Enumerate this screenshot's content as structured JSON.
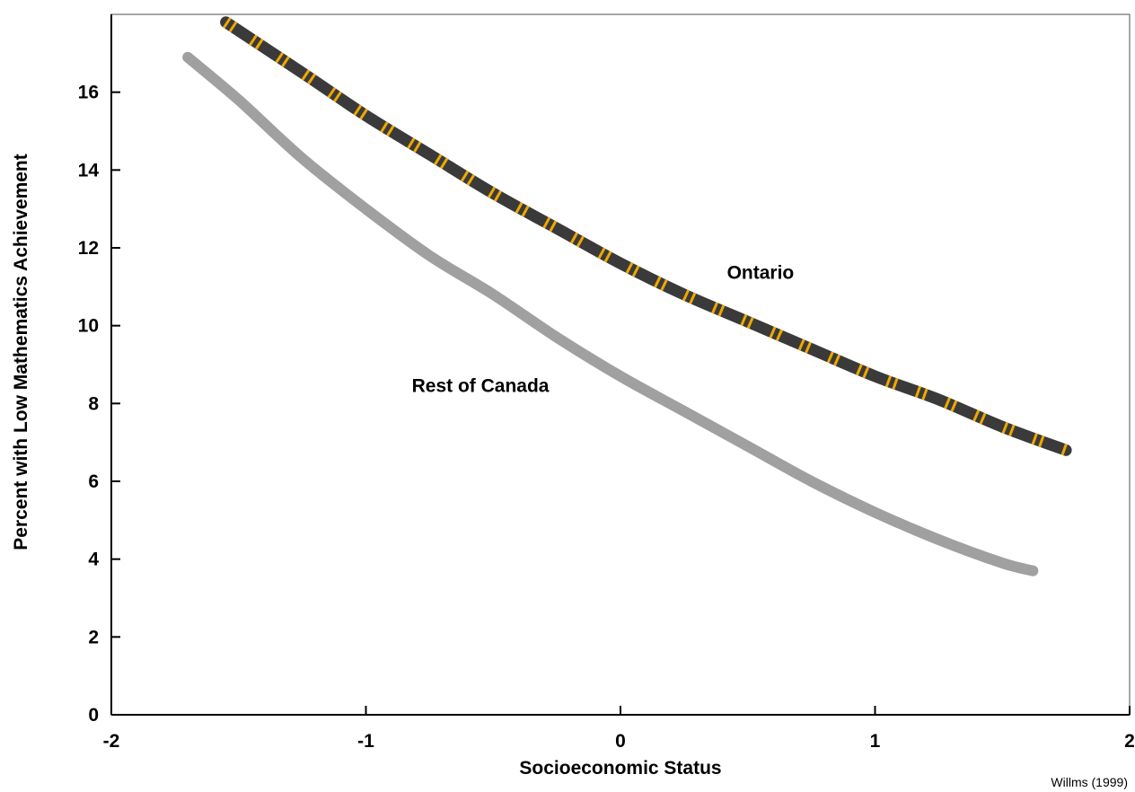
{
  "chart_data": {
    "type": "line",
    "title": "",
    "xlabel": "Socioeconomic Status",
    "ylabel": "Percent with Low Mathematics Achievement",
    "xlim": [
      -2,
      2
    ],
    "ylim": [
      0,
      18
    ],
    "xticks": [
      -2,
      -1,
      0,
      1,
      2
    ],
    "xtick_labels": [
      "-2",
      "-1",
      "0",
      "1",
      "2"
    ],
    "yticks": [
      0,
      2,
      4,
      6,
      8,
      10,
      12,
      14,
      16
    ],
    "ytick_labels": [
      "0",
      "2",
      "4",
      "6",
      "8",
      "10",
      "12",
      "14",
      "16"
    ],
    "grid": false,
    "series": [
      {
        "name": "Ontario",
        "color": "#3a3a3a",
        "dash_color": "#f0a800",
        "x": [
          -1.55,
          -1.25,
          -1.0,
          -0.75,
          -0.5,
          -0.25,
          0.0,
          0.25,
          0.5,
          0.75,
          1.0,
          1.25,
          1.5,
          1.75
        ],
        "y": [
          17.8,
          16.5,
          15.4,
          14.4,
          13.4,
          12.5,
          11.6,
          10.8,
          10.1,
          9.4,
          8.7,
          8.1,
          7.4,
          6.8
        ]
      },
      {
        "name": "Rest of Canada",
        "color": "#a0a0a0",
        "x": [
          -1.7,
          -1.5,
          -1.25,
          -1.0,
          -0.75,
          -0.5,
          -0.25,
          0.0,
          0.25,
          0.5,
          0.75,
          1.0,
          1.25,
          1.5,
          1.62
        ],
        "y": [
          16.9,
          15.8,
          14.3,
          13.0,
          11.8,
          10.8,
          9.7,
          8.7,
          7.8,
          6.9,
          6.0,
          5.2,
          4.5,
          3.9,
          3.7
        ]
      }
    ],
    "annotations": [
      {
        "text": "Ontario",
        "x": 0.55,
        "y": 11.2
      },
      {
        "text": "Rest of Canada",
        "x": -0.55,
        "y": 8.3
      }
    ],
    "source": "Willms (1999)"
  }
}
